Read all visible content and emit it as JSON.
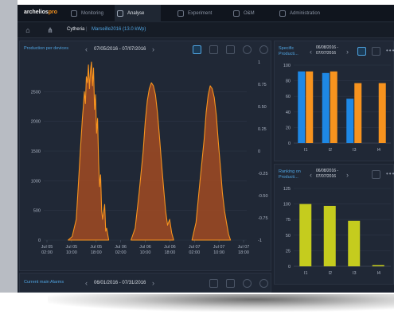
{
  "app": {
    "logo_main": "archelios",
    "logo_accent": "pro"
  },
  "topnav": [
    {
      "label": "Monitoring",
      "active": false
    },
    {
      "label": "Analyse",
      "active": true
    },
    {
      "label": "Experiment",
      "active": false
    },
    {
      "label": "O&M",
      "active": false
    },
    {
      "label": "Administration",
      "active": false
    }
  ],
  "breadcrumb": {
    "site": "Cytheria",
    "separator": "|",
    "plant": "Marseille2016 (13.0 kWp)"
  },
  "main_panel": {
    "title": "Production per devices",
    "date_range": "07/05/2016 - 07/07/2016"
  },
  "specific_panel": {
    "title_line1": "Specific",
    "title_line2": "Producti...",
    "date_line1": "06/08/2016 -",
    "date_line2": "07/07/2016"
  },
  "ranking_panel": {
    "title_line1": "Ranking on",
    "title_line2": "Producti...",
    "date_line1": "06/08/2016 -",
    "date_line2": "07/07/2016"
  },
  "alarms_panel": {
    "title": "Current main Alarms",
    "date_range": "06/01/2016 - 07/31/2016"
  },
  "colors": {
    "orange": "#f7931e",
    "orange_fill": "#a24a22",
    "blue": "#1e88e5",
    "yellow_green": "#c5cc1e",
    "accent_blue": "#4fa3e0"
  },
  "chart_data": [
    {
      "type": "area",
      "title": "Production per devices",
      "y_left_ticks": [
        "0",
        "500",
        "1000",
        "1500",
        "2000",
        "2500"
      ],
      "y_right_ticks": [
        "1",
        "0.75",
        "0.50",
        "0.25",
        "0",
        "-0.25",
        "-0.50",
        "-0.75",
        "-1"
      ],
      "x_ticks": [
        "Jul 05\n02:00",
        "Jul 05\n10:00",
        "Jul 05\n18:00",
        "Jul 06\n02:00",
        "Jul 06\n10:00",
        "Jul 06\n18:00",
        "Jul 07\n02:00",
        "Jul 07\n10:00",
        "Jul 07\n18:00"
      ],
      "ylim": [
        0,
        3000
      ],
      "series": [
        {
          "values": [
            [
              0.12,
              0
            ],
            [
              0.14,
              60
            ],
            [
              0.16,
              350
            ],
            [
              0.17,
              900
            ],
            [
              0.18,
              1500
            ],
            [
              0.19,
              2050
            ],
            [
              0.195,
              2250
            ],
            [
              0.2,
              2500
            ],
            [
              0.205,
              2300
            ],
            [
              0.21,
              2750
            ],
            [
              0.215,
              2650
            ],
            [
              0.22,
              2950
            ],
            [
              0.225,
              2550
            ],
            [
              0.23,
              2850
            ],
            [
              0.235,
              3000
            ],
            [
              0.24,
              2600
            ],
            [
              0.245,
              2900
            ],
            [
              0.25,
              2200
            ],
            [
              0.255,
              2450
            ],
            [
              0.26,
              1800
            ],
            [
              0.265,
              2050
            ],
            [
              0.27,
              1300
            ],
            [
              0.275,
              900
            ],
            [
              0.28,
              1100
            ],
            [
              0.285,
              500
            ],
            [
              0.29,
              350
            ],
            [
              0.3,
              600
            ],
            [
              0.305,
              150
            ],
            [
              0.31,
              200
            ],
            [
              0.32,
              0
            ],
            [
              0.43,
              0
            ],
            [
              0.45,
              200
            ],
            [
              0.47,
              800
            ],
            [
              0.49,
              1500
            ],
            [
              0.5,
              2000
            ],
            [
              0.51,
              2350
            ],
            [
              0.52,
              2550
            ],
            [
              0.53,
              2650
            ],
            [
              0.54,
              2600
            ],
            [
              0.55,
              2450
            ],
            [
              0.56,
              2150
            ],
            [
              0.57,
              1750
            ],
            [
              0.58,
              1300
            ],
            [
              0.59,
              900
            ],
            [
              0.6,
              500
            ],
            [
              0.61,
              250
            ],
            [
              0.62,
              350
            ],
            [
              0.63,
              120
            ],
            [
              0.64,
              0
            ],
            [
              0.73,
              0
            ],
            [
              0.75,
              300
            ],
            [
              0.77,
              1000
            ],
            [
              0.79,
              1700
            ],
            [
              0.8,
              2150
            ],
            [
              0.81,
              2450
            ],
            [
              0.82,
              2600
            ],
            [
              0.83,
              2550
            ],
            [
              0.84,
              2400
            ],
            [
              0.85,
              2100
            ],
            [
              0.86,
              1650
            ],
            [
              0.87,
              1250
            ],
            [
              0.88,
              800
            ],
            [
              0.89,
              500
            ],
            [
              0.9,
              300
            ],
            [
              0.91,
              100
            ],
            [
              0.92,
              0
            ]
          ]
        }
      ]
    },
    {
      "type": "bar",
      "title": "Specific Producti...",
      "categories": [
        "I1",
        "I2",
        "I3",
        "I4"
      ],
      "y_ticks": [
        "0",
        "20",
        "40",
        "60",
        "80",
        "100"
      ],
      "ylim": [
        0,
        100
      ],
      "series": [
        {
          "values": [
            92,
            90,
            57,
            0
          ]
        },
        {
          "values": [
            92,
            92,
            77,
            77
          ]
        }
      ]
    },
    {
      "type": "bar",
      "title": "Ranking on Producti...",
      "categories": [
        "I1",
        "I2",
        "I3",
        "I4"
      ],
      "y_ticks": [
        "0",
        "25",
        "50",
        "75",
        "100",
        "125"
      ],
      "ylim": [
        0,
        125
      ],
      "series": [
        {
          "values": [
            100,
            97,
            73,
            2
          ]
        }
      ]
    }
  ]
}
